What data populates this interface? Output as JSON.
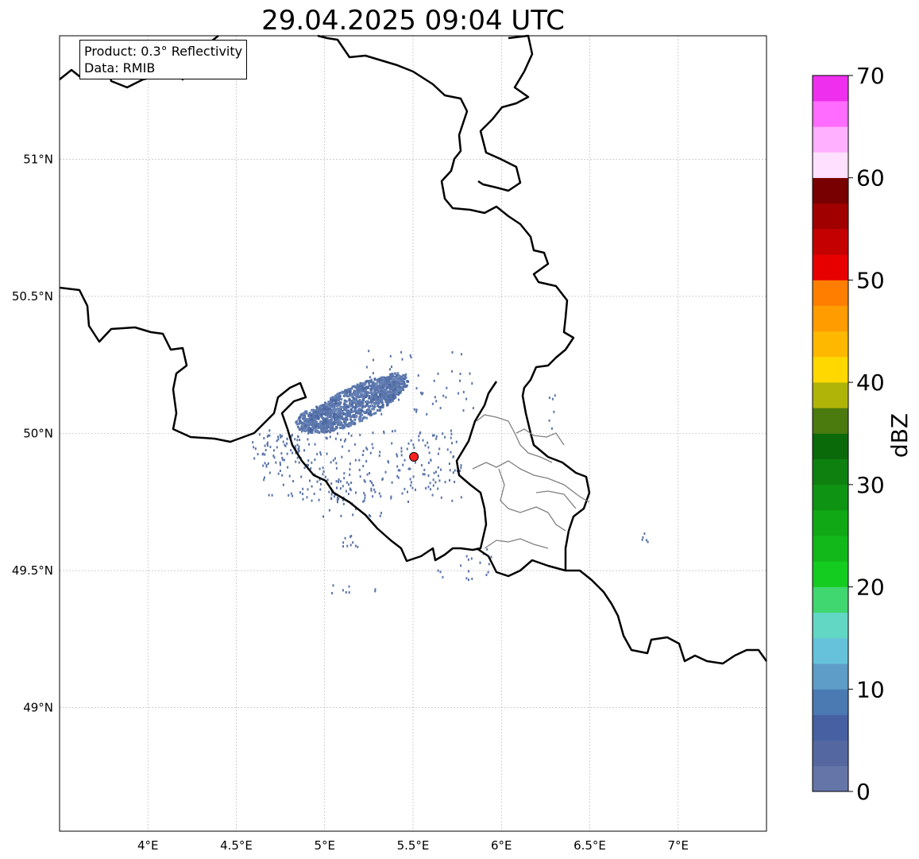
{
  "title": "29.04.2025 09:04 UTC",
  "info": {
    "product": "Product: 0.3° Reflectivity",
    "data": "Data: RMIB"
  },
  "map": {
    "extent": {
      "lon": [
        3.5,
        7.5
      ],
      "lat": [
        48.55,
        51.45
      ]
    },
    "x_ticks": [
      {
        "lon": 4.0,
        "label": "4°E"
      },
      {
        "lon": 4.5,
        "label": "4.5°E"
      },
      {
        "lon": 5.0,
        "label": "5°E"
      },
      {
        "lon": 5.5,
        "label": "5.5°E"
      },
      {
        "lon": 6.0,
        "label": "6°E"
      },
      {
        "lon": 6.5,
        "label": "6.5°E"
      },
      {
        "lon": 7.0,
        "label": "7°E"
      }
    ],
    "y_ticks": [
      {
        "lat": 51.0,
        "label": "51°N"
      },
      {
        "lat": 50.5,
        "label": "50.5°N"
      },
      {
        "lat": 50.0,
        "label": "50°N"
      },
      {
        "lat": 49.5,
        "label": "49.5°N"
      },
      {
        "lat": 49.0,
        "label": "49°N"
      }
    ],
    "radar_site": {
      "lon": 5.505,
      "lat": 49.915,
      "color": "#ff2020"
    },
    "border_color": "#000000",
    "province_color": "#808080",
    "echo_color": "#5a74a8"
  },
  "colorbar": {
    "label": "dBZ",
    "min": 0,
    "max": 70,
    "step": 2.5,
    "ticks": [
      {
        "value": 0,
        "label": "0"
      },
      {
        "value": 10,
        "label": "10"
      },
      {
        "value": 20,
        "label": "20"
      },
      {
        "value": 30,
        "label": "30"
      },
      {
        "value": 40,
        "label": "40"
      },
      {
        "value": 50,
        "label": "50"
      },
      {
        "value": 60,
        "label": "60"
      },
      {
        "value": 70,
        "label": "70"
      }
    ],
    "colors": [
      "#6575a8",
      "#5467a0",
      "#4660a2",
      "#4b7ab2",
      "#5d9dc8",
      "#65c2da",
      "#62d7c4",
      "#40d670",
      "#14cc20",
      "#12b81a",
      "#10a814",
      "#0e9412",
      "#0e8010",
      "#0a6a0a",
      "#4b7a0e",
      "#b0b408",
      "#ffd800",
      "#ffb800",
      "#ff9c00",
      "#ff7e00",
      "#e60000",
      "#c40000",
      "#a00000",
      "#780000",
      "#ffe0ff",
      "#ffb0ff",
      "#ff6cff",
      "#ee30ee"
    ]
  }
}
